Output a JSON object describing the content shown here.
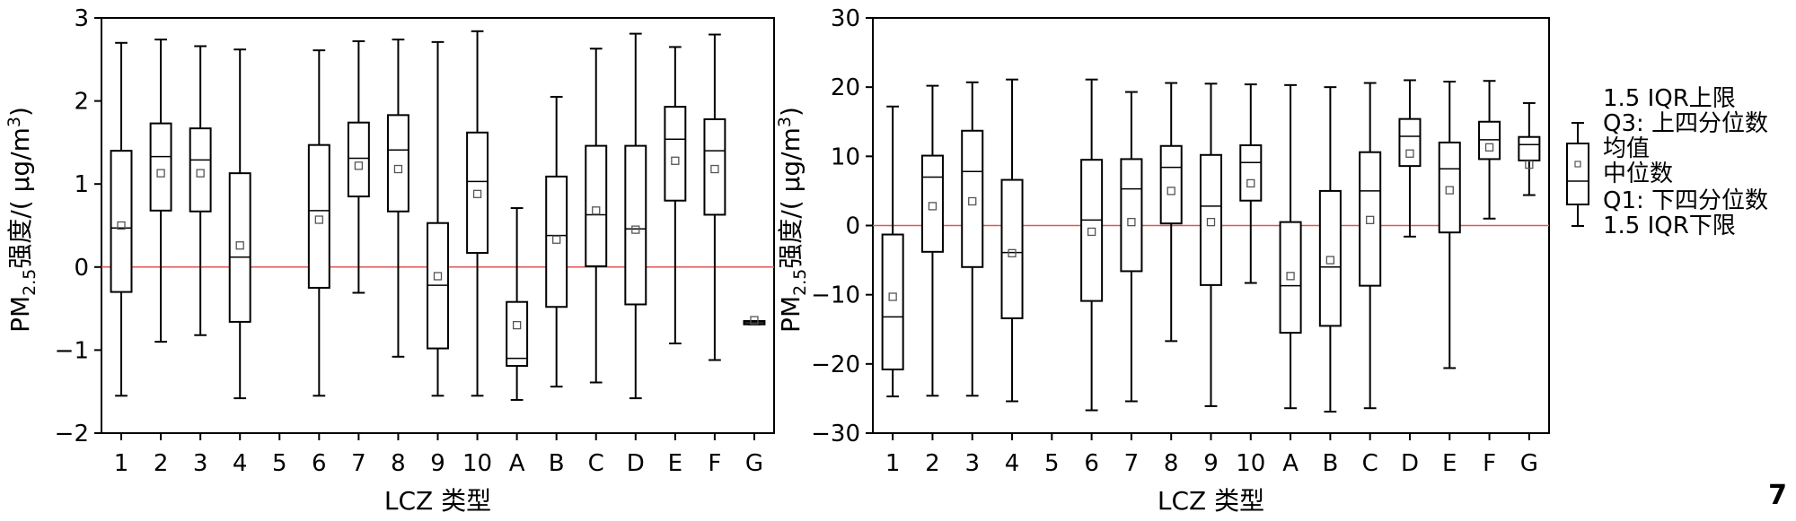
{
  "page_number": "7",
  "legend": {
    "labels": [
      "1.5 IQR上限",
      "Q3: 上四分位数",
      "均值",
      "中位数",
      "Q1: 下四分位数",
      "1.5 IQR下限"
    ]
  },
  "colors": {
    "reference_line": "#e05555",
    "box_stroke": "#000000",
    "mean_marker": "#555555"
  },
  "chart_data": [
    {
      "type": "box",
      "xlabel": "LCZ 类型",
      "ylabel": "PM2.5强度/( μg/m3)",
      "ylabel_parts": {
        "base": "PM",
        "sub": "2.5",
        "mid": "强度/( μg/m",
        "sup": "3",
        "end": ")"
      },
      "ylim": [
        -2,
        3
      ],
      "yticks": [
        -2,
        -1,
        0,
        1,
        2,
        3
      ],
      "ytick_labels": [
        "−2",
        "−1",
        "0",
        "1",
        "2",
        "3"
      ],
      "reference_line": 0,
      "categories": [
        "1",
        "2",
        "3",
        "4",
        "5",
        "6",
        "7",
        "8",
        "9",
        "10",
        "A",
        "B",
        "C",
        "D",
        "E",
        "F",
        "G"
      ],
      "boxes": [
        {
          "min": -1.55,
          "q1": -0.3,
          "median": 0.47,
          "q3": 1.4,
          "max": 2.7,
          "mean": 0.5
        },
        {
          "min": -0.9,
          "q1": 0.68,
          "median": 1.33,
          "q3": 1.73,
          "max": 2.74,
          "mean": 1.13
        },
        {
          "min": -0.82,
          "q1": 0.67,
          "median": 1.29,
          "q3": 1.67,
          "max": 2.66,
          "mean": 1.13
        },
        {
          "min": -1.58,
          "q1": -0.66,
          "median": 0.12,
          "q3": 1.13,
          "max": 2.62,
          "mean": 0.26
        },
        null,
        {
          "min": -1.55,
          "q1": -0.25,
          "median": 0.68,
          "q3": 1.47,
          "max": 2.61,
          "mean": 0.57
        },
        {
          "min": -0.31,
          "q1": 0.85,
          "median": 1.31,
          "q3": 1.74,
          "max": 2.72,
          "mean": 1.22
        },
        {
          "min": -1.08,
          "q1": 0.67,
          "median": 1.41,
          "q3": 1.83,
          "max": 2.74,
          "mean": 1.18
        },
        {
          "min": -1.55,
          "q1": -0.98,
          "median": -0.22,
          "q3": 0.53,
          "max": 2.71,
          "mean": -0.11
        },
        {
          "min": -1.55,
          "q1": 0.17,
          "median": 1.03,
          "q3": 1.62,
          "max": 2.84,
          "mean": 0.88
        },
        {
          "min": -1.6,
          "q1": -1.19,
          "median": -1.1,
          "q3": -0.42,
          "max": 0.71,
          "mean": -0.7
        },
        {
          "min": -1.44,
          "q1": -0.48,
          "median": 0.38,
          "q3": 1.09,
          "max": 2.05,
          "mean": 0.33
        },
        {
          "min": -1.39,
          "q1": 0.01,
          "median": 0.63,
          "q3": 1.46,
          "max": 2.63,
          "mean": 0.68
        },
        {
          "min": -1.58,
          "q1": -0.45,
          "median": 0.46,
          "q3": 1.46,
          "max": 2.81,
          "mean": 0.45
        },
        {
          "min": -0.92,
          "q1": 0.8,
          "median": 1.54,
          "q3": 1.93,
          "max": 2.65,
          "mean": 1.28
        },
        {
          "min": -1.12,
          "q1": 0.63,
          "median": 1.4,
          "q3": 1.78,
          "max": 2.8,
          "mean": 1.18
        },
        {
          "min": -0.69,
          "q1": -0.69,
          "median": -0.67,
          "q3": -0.65,
          "max": -0.65,
          "mean": -0.64
        }
      ]
    },
    {
      "type": "box",
      "xlabel": "LCZ 类型",
      "ylabel": "PM2.5强度/( μg/m3)",
      "ylabel_parts": {
        "base": "PM",
        "sub": "2.5",
        "mid": "强度/( μg/m",
        "sup": "3",
        "end": ")"
      },
      "ylim": [
        -30,
        30
      ],
      "yticks": [
        -30,
        -20,
        -10,
        0,
        10,
        20,
        30
      ],
      "ytick_labels": [
        "−30",
        "−20",
        "−10",
        "0",
        "10",
        "20",
        "30"
      ],
      "reference_line": 0,
      "categories": [
        "1",
        "2",
        "3",
        "4",
        "5",
        "6",
        "7",
        "8",
        "9",
        "10",
        "A",
        "B",
        "C",
        "D",
        "E",
        "F",
        "G"
      ],
      "boxes": [
        {
          "min": -24.7,
          "q1": -20.8,
          "median": -13.2,
          "q3": -1.3,
          "max": 17.2,
          "mean": -10.3
        },
        {
          "min": -24.6,
          "q1": -3.8,
          "median": 7.0,
          "q3": 10.1,
          "max": 20.2,
          "mean": 2.8
        },
        {
          "min": -24.6,
          "q1": -6.0,
          "median": 7.8,
          "q3": 13.7,
          "max": 20.7,
          "mean": 3.5
        },
        {
          "min": -25.4,
          "q1": -13.4,
          "median": -3.9,
          "q3": 6.6,
          "max": 21.1,
          "mean": -4.0
        },
        null,
        {
          "min": -26.7,
          "q1": -10.9,
          "median": 0.8,
          "q3": 9.5,
          "max": 21.1,
          "mean": -0.9
        },
        {
          "min": -25.4,
          "q1": -6.6,
          "median": 5.3,
          "q3": 9.6,
          "max": 19.3,
          "mean": 0.5
        },
        {
          "min": -16.7,
          "q1": 0.3,
          "median": 8.4,
          "q3": 11.5,
          "max": 20.6,
          "mean": 5.0
        },
        {
          "min": -26.1,
          "q1": -8.6,
          "median": 2.8,
          "q3": 10.2,
          "max": 20.5,
          "mean": 0.5
        },
        {
          "min": -8.3,
          "q1": 3.6,
          "median": 9.1,
          "q3": 11.6,
          "max": 20.4,
          "mean": 6.1
        },
        {
          "min": -26.4,
          "q1": -15.5,
          "median": -8.7,
          "q3": 0.5,
          "max": 20.3,
          "mean": -7.3
        },
        {
          "min": -26.9,
          "q1": -14.5,
          "median": -6.0,
          "q3": 5.0,
          "max": 20.0,
          "mean": -5.0
        },
        {
          "min": -26.4,
          "q1": -8.7,
          "median": 5.0,
          "q3": 10.6,
          "max": 20.6,
          "mean": 0.8
        },
        {
          "min": -1.6,
          "q1": 8.6,
          "median": 12.9,
          "q3": 15.4,
          "max": 21.0,
          "mean": 10.4
        },
        {
          "min": -20.6,
          "q1": -1.0,
          "median": 8.2,
          "q3": 12.0,
          "max": 20.8,
          "mean": 5.1
        },
        {
          "min": 1.0,
          "q1": 9.6,
          "median": 12.4,
          "q3": 15.0,
          "max": 20.9,
          "mean": 11.3
        },
        {
          "min": 4.4,
          "q1": 9.4,
          "median": 11.7,
          "q3": 12.8,
          "max": 17.7,
          "mean": 8.8
        }
      ]
    }
  ]
}
